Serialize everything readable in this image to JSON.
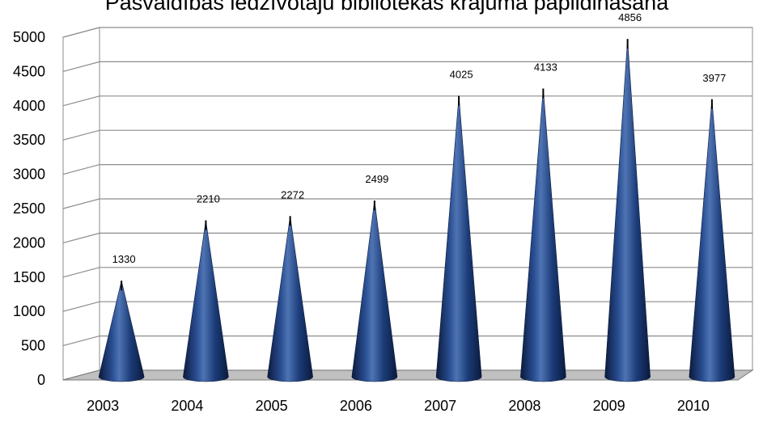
{
  "chart_data": {
    "type": "bar",
    "title": "Pašvaldības iedzīvotāju bibliotēkas krājuma papildināšana",
    "categories": [
      "2003",
      "2004",
      "2005",
      "2006",
      "2007",
      "2008",
      "2009",
      "2010"
    ],
    "values": [
      1330,
      2210,
      2272,
      2499,
      4025,
      4133,
      4856,
      3977
    ],
    "data_labels": [
      "1330",
      "2210",
      "2272",
      "2499",
      "4025",
      "4133",
      "4856",
      "3977"
    ],
    "y_ticks": [
      "0",
      "500",
      "1000",
      "1500",
      "2000",
      "2500",
      "3000",
      "3500",
      "4000",
      "4500",
      "5000"
    ],
    "xlabel": "",
    "ylabel": "",
    "ylim": [
      0,
      5000
    ],
    "grid": true,
    "legend": "none",
    "style": "3d-cone",
    "colors": {
      "bar": "#1b3c78",
      "bar_highlight": "#4f74b3",
      "bar_dark": "#0b1a3d",
      "floor": "#c0c0c0",
      "grid": "#8c8c8c"
    }
  }
}
